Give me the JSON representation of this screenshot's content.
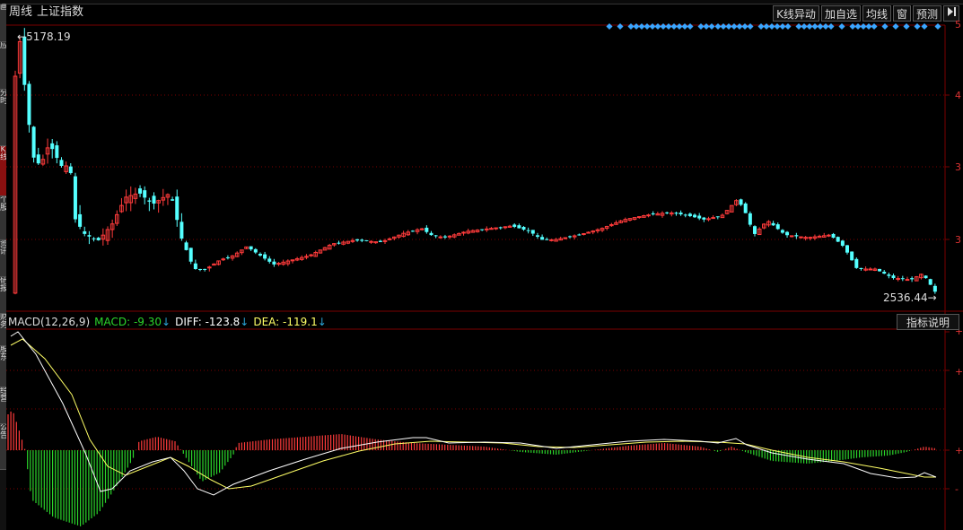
{
  "header": {
    "period": "周线",
    "index_name": "上证指数"
  },
  "toolbar": {
    "k_anomaly": "K线异动",
    "add_watch": "加自选",
    "ma_label": "均线",
    "window_label": "窗",
    "forecast": "预测",
    "collapse_icon": "collapse-icon"
  },
  "left_tabs": [
    "画",
    "应",
    "分时",
    "K线",
    "个股",
    "资讯",
    "研报",
    "财务",
    "股东",
    "经营",
    "公告"
  ],
  "price": {
    "high_label": "5178.19",
    "low_label": "2536.44"
  },
  "right_axis": {
    "main_ticks": [
      "5",
      "4",
      "3",
      "3"
    ],
    "macd_ticks": [
      "+",
      "+",
      "+",
      "-"
    ]
  },
  "macd": {
    "title": "MACD(12,26,9)",
    "macd_label": "MACD: -9.30",
    "diff_label": "DIFF: -123.8",
    "dea_label": "DEA: -119.1",
    "down_arrow": "↓",
    "help_button": "指标说明"
  },
  "colors": {
    "up": "#ff3b3b",
    "down": "#54ffff",
    "grid": "#7a0000",
    "macd_green": "#2bd52b",
    "dea_yellow": "#ffff66",
    "diff_white": "#ffffff",
    "signal_blue": "#2aa5d8"
  }
}
